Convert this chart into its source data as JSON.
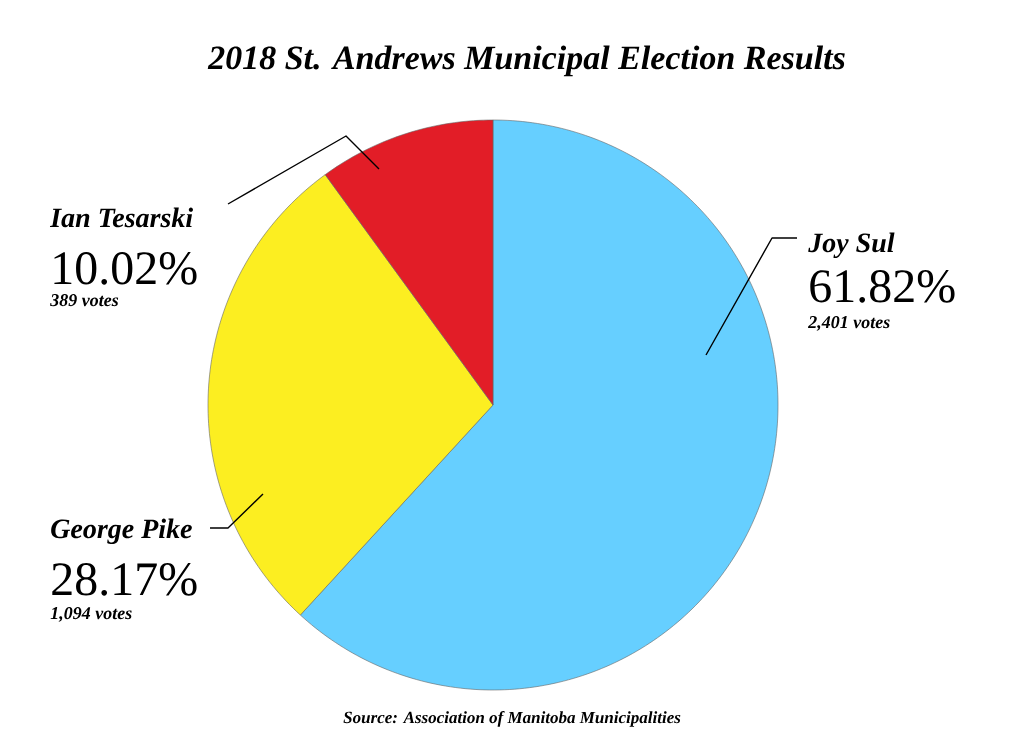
{
  "chart_data": {
    "type": "pie",
    "title": "2018 St. Andrews Municipal Election Results",
    "categories": [
      "Joy Sul",
      "George Pike",
      "Ian Tesarski"
    ],
    "values": [
      61.82,
      28.17,
      10.02
    ],
    "colors": [
      "#66cfff",
      "#fcee21",
      "#e21d27"
    ],
    "value_labels": [
      "61.82%",
      "28.17%",
      "10.02%"
    ],
    "annotations": [
      "2,401 votes",
      "1,094 votes",
      "389 votes",
      "Source: Association of Manitoba Municipalities"
    ]
  }
}
